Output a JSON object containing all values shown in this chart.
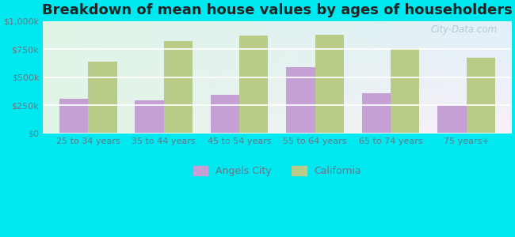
{
  "title": "Breakdown of mean house values by ages of householders",
  "categories": [
    "25 to 34 years",
    "35 to 44 years",
    "45 to 54 years",
    "55 to 64 years",
    "65 to 74 years",
    "75 years+"
  ],
  "angels_city_values": [
    310000,
    295000,
    340000,
    590000,
    360000,
    255000
  ],
  "california_values": [
    640000,
    820000,
    870000,
    880000,
    760000,
    670000
  ],
  "angels_color": "#c4a0d4",
  "california_color": "#b8cc88",
  "bg_color": "#00e8f0",
  "plot_bg_top_left": "#d0eed8",
  "plot_bg_bottom_right": "#e8f8f8",
  "ylim": [
    0,
    1000000
  ],
  "yticks": [
    0,
    250000,
    500000,
    750000,
    1000000
  ],
  "ytick_labels": [
    "$0",
    "$250k",
    "$500k",
    "$750k",
    "$1,000k"
  ],
  "legend_labels": [
    "Angels City",
    "California"
  ],
  "title_fontsize": 13,
  "axis_label_color": "#667788",
  "watermark": "City-Data.com"
}
